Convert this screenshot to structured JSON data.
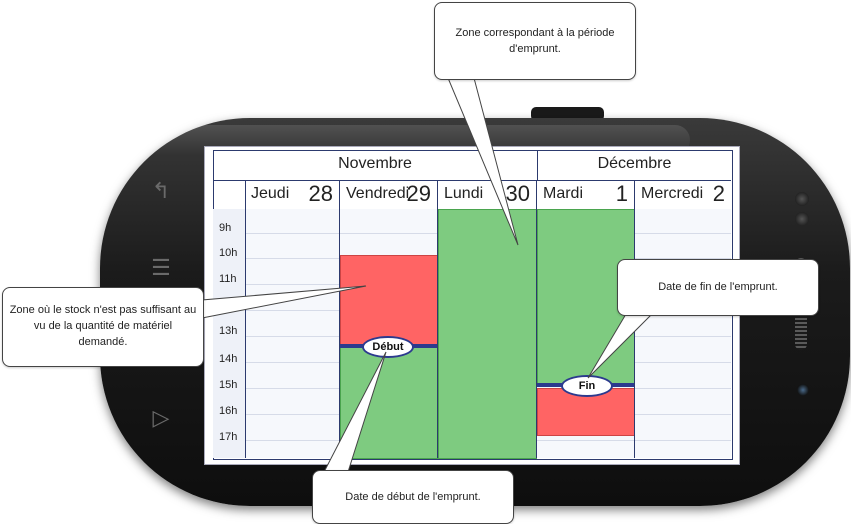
{
  "calendar": {
    "months": [
      "Novembre",
      "Décembre"
    ],
    "days": [
      {
        "name": "Jeudi",
        "date": "28"
      },
      {
        "name": "Vendredi",
        "date": "29"
      },
      {
        "name": "Lundi",
        "date": "30"
      },
      {
        "name": "Mardi",
        "date": "1"
      },
      {
        "name": "Mercredi",
        "date": "2"
      }
    ],
    "hours": [
      "9h",
      "10h",
      "11h",
      "12h",
      "13h",
      "14h",
      "15h",
      "16h",
      "17h"
    ],
    "start_label": "Début",
    "end_label": "Fin"
  },
  "callouts": {
    "borrow_zone": "Zone correspondant à la période d'emprunt.",
    "stock_zone": "Zone où le stock n'est pas suffisant au vu de la quantité de matériel demandé.",
    "end_date": "Date de fin de l'emprunt.",
    "start_date": "Date de début de l'emprunt."
  },
  "colors": {
    "available": "#7ecb80",
    "insufficient": "#ff6464",
    "marker": "#2c3a8e"
  }
}
